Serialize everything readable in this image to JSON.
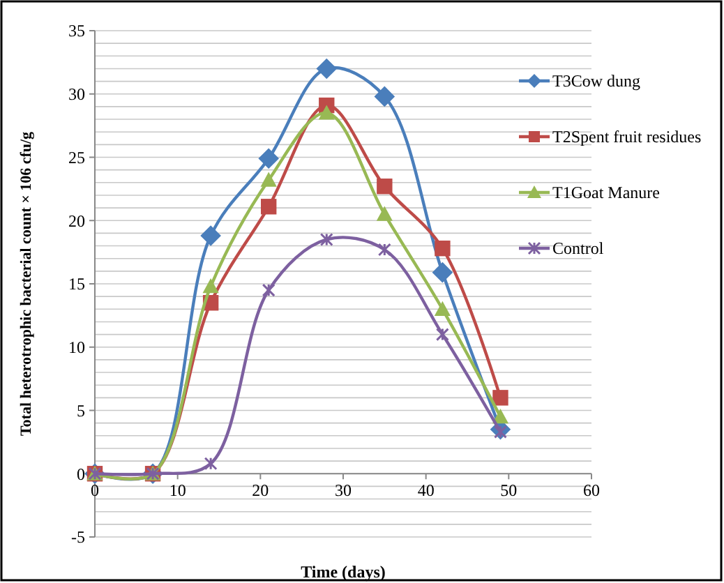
{
  "chart_data": {
    "type": "line",
    "xlabel": "Time (days)",
    "ylabel": "Total heterotrophic bacterial count × 106 cfu/g",
    "x": [
      0,
      7,
      14,
      21,
      28,
      35,
      42,
      49
    ],
    "series": [
      {
        "name": "T3Cow dung",
        "color": "#4a7ebb",
        "marker": "diamond",
        "values": [
          0,
          0,
          18.8,
          24.9,
          32,
          29.8,
          15.9,
          3.5
        ]
      },
      {
        "name": "T2Spent fruit residues",
        "color": "#be4b48",
        "marker": "square",
        "values": [
          0,
          0,
          13.5,
          21.1,
          29.1,
          22.7,
          17.8,
          6
        ]
      },
      {
        "name": "T1Goat Manure",
        "color": "#98b954",
        "marker": "triangle",
        "values": [
          0,
          0,
          14.8,
          23.2,
          28.5,
          20.5,
          13,
          4.5
        ]
      },
      {
        "name": "Control",
        "color": "#7d60a0",
        "marker": "cross",
        "values": [
          0,
          0,
          0.8,
          14.5,
          18.5,
          17.7,
          11,
          3.3
        ]
      }
    ],
    "xlim": [
      0,
      60
    ],
    "xticks": [
      0,
      10,
      20,
      30,
      40,
      50,
      60
    ],
    "ylim": [
      -5,
      35
    ],
    "yticks": [
      -5,
      {
        "value": -4,
        "label": null
      },
      {
        "value": -3,
        "label": null
      },
      {
        "value": -2,
        "label": null
      },
      {
        "value": -1,
        "label": null
      },
      0,
      {
        "value": 1,
        "label": null
      },
      {
        "value": 2,
        "label": null
      },
      {
        "value": 3,
        "label": null
      },
      {
        "value": 4,
        "label": null
      },
      5,
      {
        "value": 6,
        "label": null
      },
      {
        "value": 7,
        "label": null
      },
      {
        "value": 8,
        "label": null
      },
      {
        "value": 9,
        "label": null
      },
      10,
      {
        "value": 11,
        "label": null
      },
      {
        "value": 12,
        "label": null
      },
      {
        "value": 13,
        "label": null
      },
      {
        "value": 14,
        "label": null
      },
      15,
      {
        "value": 16,
        "label": null
      },
      {
        "value": 17,
        "label": null
      },
      {
        "value": 18,
        "label": null
      },
      {
        "value": 19,
        "label": null
      },
      20,
      {
        "value": 21,
        "label": null
      },
      {
        "value": 22,
        "label": null
      },
      {
        "value": 23,
        "label": null
      },
      {
        "value": 24,
        "label": null
      },
      25,
      {
        "value": 26,
        "label": null
      },
      {
        "value": 27,
        "label": null
      },
      {
        "value": 28,
        "label": null
      },
      {
        "value": 29,
        "label": null
      },
      30,
      {
        "value": 31,
        "label": null
      },
      {
        "value": 32,
        "label": null
      },
      {
        "value": 33,
        "label": null
      },
      {
        "value": 34,
        "label": null
      },
      35
    ],
    "grid": "y",
    "legend": "right"
  }
}
